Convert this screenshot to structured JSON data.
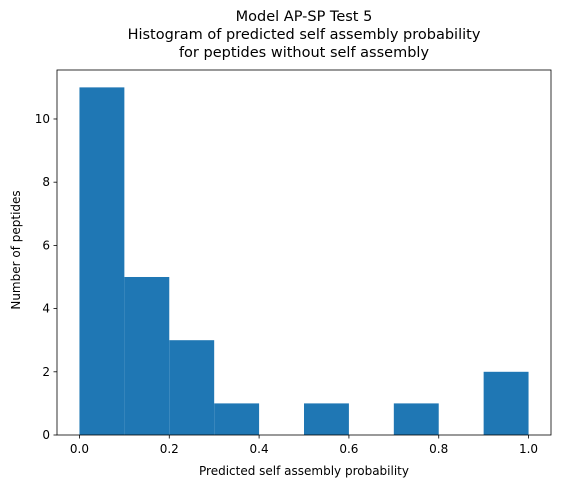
{
  "chart_data": {
    "type": "bar",
    "title_lines": [
      "Model AP-SP Test 5",
      "Histogram of predicted self assembly probability",
      "for peptides without self assembly"
    ],
    "xlabel": "Predicted self assembly probability",
    "ylabel": "Number of peptides",
    "bin_edges": [
      0.0,
      0.1,
      0.2,
      0.3,
      0.4,
      0.5,
      0.6,
      0.7,
      0.8,
      0.9,
      1.0
    ],
    "values": [
      11,
      5,
      3,
      1,
      0,
      1,
      0,
      1,
      0,
      2
    ],
    "xlim": [
      -0.05,
      1.05
    ],
    "ylim": [
      0,
      11.55
    ],
    "xticks": [
      0.0,
      0.2,
      0.4,
      0.6,
      0.8,
      1.0
    ],
    "xtick_labels": [
      "0.0",
      "0.2",
      "0.4",
      "0.6",
      "0.8",
      "1.0"
    ],
    "yticks": [
      0,
      2,
      4,
      6,
      8,
      10
    ],
    "ytick_labels": [
      "0",
      "2",
      "4",
      "6",
      "8",
      "10"
    ],
    "bar_color": "#1f77b4",
    "grid": false
  }
}
